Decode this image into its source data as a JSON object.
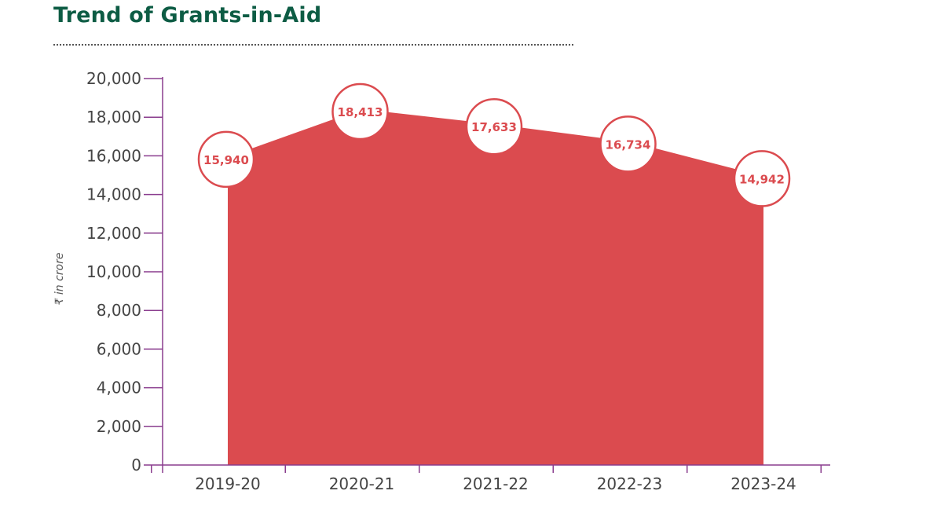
{
  "chart_data": {
    "type": "area",
    "title": "Trend of Grants-in-Aid",
    "ylabel": "₹ in crore",
    "xlabel": "",
    "categories": [
      "2019-20",
      "2020-21",
      "2021-22",
      "2022-23",
      "2023-24"
    ],
    "values": [
      15940,
      18413,
      17633,
      16734,
      14942
    ],
    "data_labels": [
      "15,940",
      "18,413",
      "17,633",
      "16,734",
      "14,942"
    ],
    "ylim": [
      0,
      20000
    ],
    "yticks": [
      0,
      2000,
      4000,
      6000,
      8000,
      10000,
      12000,
      14000,
      16000,
      18000,
      20000
    ],
    "ytick_labels": [
      "0",
      "2,000",
      "4,000",
      "6,000",
      "8,000",
      "10,000",
      "12,000",
      "14,000",
      "16,000",
      "18,000",
      "20,000"
    ],
    "grid": false,
    "legend": "none",
    "colors": {
      "area": "#db4b4f",
      "axis": "#8a3d8e",
      "title": "#0d5c44",
      "label_text": "#db4b4f",
      "circle_fill": "#ffffff"
    }
  }
}
